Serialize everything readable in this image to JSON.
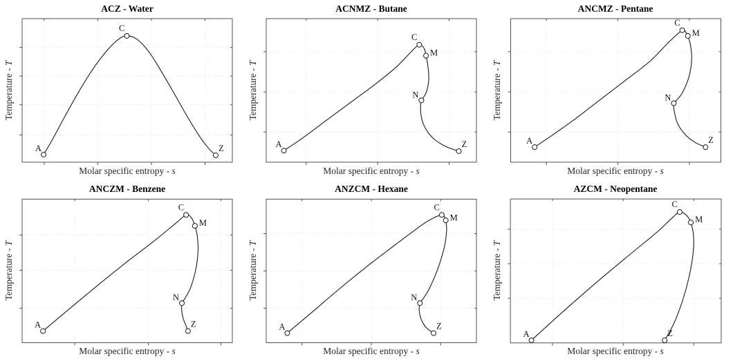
{
  "figure": {
    "description": "2x3 grid of temperature-entropy (T-s) saturation diagrams for six substances",
    "background": "#ffffff",
    "curve_color": "#1a1a1a",
    "marker_fill": "#ffffff",
    "grid_color": "#e2e2e2",
    "axis_color": "#3f3f3f",
    "title_color": "#000000",
    "label_color": "#262626"
  },
  "axes": {
    "xlabel_prefix": "Molar specific entropy - ",
    "xlabel_var": "s",
    "ylabel_prefix": "Temperature - ",
    "ylabel_var": "T",
    "tick_labels": "none (arbitrary units)"
  },
  "chart_data": [
    {
      "type": "line",
      "title": "ACZ - Water",
      "sequence": "ACZ",
      "substance": "Water",
      "xlabel": "Molar specific entropy - s",
      "ylabel": "Temperature - T",
      "grid": true,
      "axis_tick_labels": "none",
      "x_ticks": [
        0.105,
        0.36,
        0.615,
        0.87
      ],
      "y_ticks": [
        0.19,
        0.4,
        0.6,
        0.8
      ],
      "points": [
        {
          "label": "A",
          "x": 0.102,
          "y": 0.053
        },
        {
          "label": "C",
          "x": 0.498,
          "y": 0.88
        },
        {
          "label": "Z",
          "x": 0.921,
          "y": 0.048
        }
      ],
      "curve": [
        [
          0.102,
          0.053
        ],
        [
          0.145,
          0.16
        ],
        [
          0.2,
          0.31
        ],
        [
          0.265,
          0.48
        ],
        [
          0.335,
          0.645
        ],
        [
          0.405,
          0.78
        ],
        [
          0.46,
          0.858
        ],
        [
          0.498,
          0.88
        ],
        [
          0.545,
          0.858
        ],
        [
          0.6,
          0.775
        ],
        [
          0.655,
          0.65
        ],
        [
          0.715,
          0.5
        ],
        [
          0.775,
          0.345
        ],
        [
          0.835,
          0.2
        ],
        [
          0.885,
          0.1
        ],
        [
          0.921,
          0.048
        ]
      ]
    },
    {
      "type": "line",
      "title": "ACNMZ - Butane",
      "sequence": "ACNMZ",
      "substance": "Butane",
      "xlabel": "Molar specific entropy - s",
      "ylabel": "Temperature - T",
      "grid": true,
      "axis_tick_labels": "none",
      "x_ticks": [
        0.19,
        0.53,
        0.87
      ],
      "y_ticks": [
        0.21,
        0.49,
        0.77
      ],
      "points": [
        {
          "label": "A",
          "x": 0.084,
          "y": 0.081
        },
        {
          "label": "C",
          "x": 0.728,
          "y": 0.818
        },
        {
          "label": "M",
          "x": 0.76,
          "y": 0.742
        },
        {
          "label": "N",
          "x": 0.738,
          "y": 0.431
        },
        {
          "label": "Z",
          "x": 0.916,
          "y": 0.077
        }
      ],
      "curve": [
        [
          0.084,
          0.081
        ],
        [
          0.17,
          0.165
        ],
        [
          0.28,
          0.285
        ],
        [
          0.4,
          0.415
        ],
        [
          0.52,
          0.545
        ],
        [
          0.62,
          0.665
        ],
        [
          0.69,
          0.77
        ],
        [
          0.728,
          0.818
        ],
        [
          0.751,
          0.793
        ],
        [
          0.76,
          0.742
        ],
        [
          0.77,
          0.66
        ],
        [
          0.773,
          0.57
        ],
        [
          0.762,
          0.49
        ],
        [
          0.746,
          0.447
        ],
        [
          0.738,
          0.431
        ],
        [
          0.734,
          0.37
        ],
        [
          0.741,
          0.295
        ],
        [
          0.763,
          0.222
        ],
        [
          0.801,
          0.158
        ],
        [
          0.856,
          0.108
        ],
        [
          0.916,
          0.077
        ]
      ]
    },
    {
      "type": "line",
      "title": "ANCMZ - Pentane",
      "sequence": "ANCMZ",
      "substance": "Pentane",
      "xlabel": "Molar specific entropy - s",
      "ylabel": "Temperature - T",
      "grid": true,
      "axis_tick_labels": "none",
      "x_ticks": [
        0.17,
        0.51,
        0.85
      ],
      "y_ticks": [
        0.21,
        0.49,
        0.77
      ],
      "points": [
        {
          "label": "A",
          "x": 0.114,
          "y": 0.105
        },
        {
          "label": "C",
          "x": 0.816,
          "y": 0.919
        },
        {
          "label": "M",
          "x": 0.843,
          "y": 0.88
        },
        {
          "label": "N",
          "x": 0.776,
          "y": 0.411
        },
        {
          "label": "Z",
          "x": 0.927,
          "y": 0.105
        }
      ],
      "curve": [
        [
          0.114,
          0.105
        ],
        [
          0.2,
          0.19
        ],
        [
          0.31,
          0.305
        ],
        [
          0.43,
          0.44
        ],
        [
          0.55,
          0.575
        ],
        [
          0.66,
          0.7
        ],
        [
          0.755,
          0.84
        ],
        [
          0.816,
          0.919
        ],
        [
          0.834,
          0.903
        ],
        [
          0.843,
          0.88
        ],
        [
          0.856,
          0.81
        ],
        [
          0.861,
          0.715
        ],
        [
          0.849,
          0.6
        ],
        [
          0.818,
          0.487
        ],
        [
          0.79,
          0.433
        ],
        [
          0.776,
          0.411
        ],
        [
          0.78,
          0.34
        ],
        [
          0.797,
          0.26
        ],
        [
          0.832,
          0.19
        ],
        [
          0.877,
          0.138
        ],
        [
          0.927,
          0.105
        ]
      ]
    },
    {
      "type": "line",
      "title": "ANCZM - Benzene",
      "sequence": "ANCZM",
      "substance": "Benzene",
      "xlabel": "Molar specific entropy - s",
      "ylabel": "Temperature - T",
      "grid": true,
      "axis_tick_labels": "none",
      "x_ticks": [
        0.25,
        0.6,
        0.945
      ],
      "y_ticks": [
        0.24,
        0.505,
        0.75
      ],
      "points": [
        {
          "label": "A",
          "x": 0.099,
          "y": 0.081
        },
        {
          "label": "C",
          "x": 0.78,
          "y": 0.89
        },
        {
          "label": "M",
          "x": 0.822,
          "y": 0.814
        },
        {
          "label": "N",
          "x": 0.76,
          "y": 0.276
        },
        {
          "label": "Z",
          "x": 0.789,
          "y": 0.081
        }
      ],
      "curve": [
        [
          0.099,
          0.081
        ],
        [
          0.22,
          0.23
        ],
        [
          0.36,
          0.4
        ],
        [
          0.5,
          0.565
        ],
        [
          0.625,
          0.705
        ],
        [
          0.725,
          0.825
        ],
        [
          0.78,
          0.89
        ],
        [
          0.806,
          0.868
        ],
        [
          0.822,
          0.814
        ],
        [
          0.833,
          0.745
        ],
        [
          0.837,
          0.65
        ],
        [
          0.828,
          0.525
        ],
        [
          0.803,
          0.39
        ],
        [
          0.776,
          0.312
        ],
        [
          0.76,
          0.276
        ],
        [
          0.759,
          0.225
        ],
        [
          0.766,
          0.17
        ],
        [
          0.779,
          0.12
        ],
        [
          0.789,
          0.081
        ]
      ]
    },
    {
      "type": "line",
      "title": "ANZCM - Hexane",
      "sequence": "ANZCM",
      "substance": "Hexane",
      "xlabel": "Molar specific entropy - s",
      "ylabel": "Temperature - T",
      "grid": true,
      "axis_tick_labels": "none",
      "x_ticks": [
        0.17,
        0.5,
        0.83
      ],
      "y_ticks": [
        0.24,
        0.5,
        0.76
      ],
      "points": [
        {
          "label": "A",
          "x": 0.1,
          "y": 0.067
        },
        {
          "label": "C",
          "x": 0.835,
          "y": 0.89
        },
        {
          "label": "M",
          "x": 0.854,
          "y": 0.852
        },
        {
          "label": "N",
          "x": 0.731,
          "y": 0.276
        },
        {
          "label": "Z",
          "x": 0.796,
          "y": 0.067
        }
      ],
      "curve": [
        [
          0.1,
          0.067
        ],
        [
          0.22,
          0.215
        ],
        [
          0.36,
          0.39
        ],
        [
          0.5,
          0.555
        ],
        [
          0.63,
          0.7
        ],
        [
          0.745,
          0.825
        ],
        [
          0.8,
          0.872
        ],
        [
          0.835,
          0.89
        ],
        [
          0.848,
          0.877
        ],
        [
          0.854,
          0.852
        ],
        [
          0.858,
          0.78
        ],
        [
          0.847,
          0.665
        ],
        [
          0.815,
          0.51
        ],
        [
          0.775,
          0.375
        ],
        [
          0.747,
          0.308
        ],
        [
          0.731,
          0.276
        ],
        [
          0.728,
          0.22
        ],
        [
          0.737,
          0.163
        ],
        [
          0.756,
          0.113
        ],
        [
          0.776,
          0.087
        ],
        [
          0.796,
          0.067
        ]
      ]
    },
    {
      "type": "line",
      "title": "AZCM - Neopentane",
      "sequence": "AZCM",
      "substance": "Neopentane",
      "xlabel": "Molar specific entropy - s",
      "ylabel": "Temperature - T",
      "grid": true,
      "axis_tick_labels": "none",
      "x_ticks": [
        0.2,
        0.535,
        0.87
      ],
      "y_ticks": [
        0.31,
        0.55,
        0.79
      ],
      "points": [
        {
          "label": "A",
          "x": 0.1,
          "y": 0.018
        },
        {
          "label": "C",
          "x": 0.803,
          "y": 0.909
        },
        {
          "label": "M",
          "x": 0.856,
          "y": 0.837
        },
        {
          "label": "Z",
          "x": 0.732,
          "y": 0.018
        }
      ],
      "curve": [
        [
          0.1,
          0.018
        ],
        [
          0.24,
          0.205
        ],
        [
          0.42,
          0.435
        ],
        [
          0.58,
          0.63
        ],
        [
          0.7,
          0.775
        ],
        [
          0.77,
          0.872
        ],
        [
          0.803,
          0.909
        ],
        [
          0.834,
          0.888
        ],
        [
          0.856,
          0.837
        ],
        [
          0.869,
          0.735
        ],
        [
          0.866,
          0.615
        ],
        [
          0.847,
          0.455
        ],
        [
          0.817,
          0.295
        ],
        [
          0.777,
          0.14
        ],
        [
          0.732,
          0.018
        ]
      ]
    }
  ]
}
